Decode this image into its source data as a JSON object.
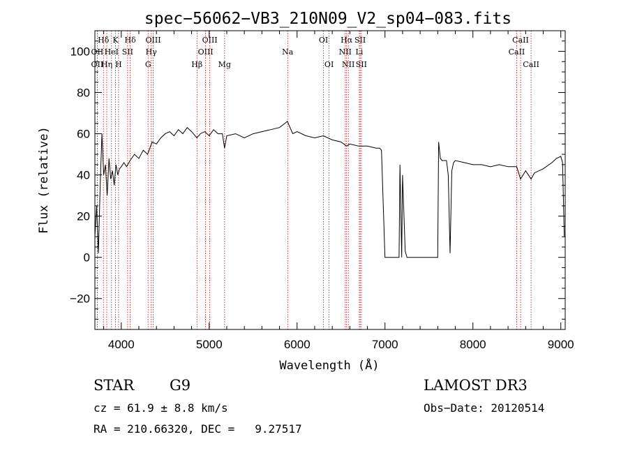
{
  "chart_data": {
    "type": "line",
    "title": "spec−56062−VB3_210N09_V2_sp04−083.fits",
    "xlabel": "Wavelength (Å)",
    "ylabel": "Flux (relative)",
    "xlim": [
      3700,
      9050
    ],
    "ylim": [
      -35,
      110
    ],
    "x_ticks": [
      4000,
      5000,
      6000,
      7000,
      8000,
      9000
    ],
    "y_ticks": [
      -20,
      0,
      20,
      40,
      60,
      80,
      100
    ],
    "series": [
      {
        "x": [
          3700,
          3720,
          3740,
          3760,
          3780,
          3800,
          3820,
          3840,
          3860,
          3880,
          3900,
          3920,
          3940,
          3960,
          3980,
          4000,
          4030,
          4060,
          4100,
          4150,
          4200,
          4250,
          4300,
          4350,
          4400,
          4450,
          4500,
          4550,
          4600,
          4650,
          4700,
          4750,
          4800,
          4860,
          4900,
          4950,
          5000,
          5050,
          5100,
          5150,
          5175,
          5200,
          5300,
          5400,
          5500,
          5600,
          5700,
          5800,
          5890,
          5950,
          6000,
          6100,
          6200,
          6300,
          6400,
          6500,
          6563,
          6600,
          6700,
          6800,
          6900,
          6940,
          6960,
          7000,
          7100,
          7160,
          7170,
          7190,
          7200,
          7230,
          7250,
          7300,
          7400,
          7500,
          7590,
          7600,
          7610,
          7630,
          7650,
          7700,
          7720,
          7740,
          7760,
          7780,
          7800,
          7900,
          8000,
          8100,
          8200,
          8300,
          8400,
          8498,
          8542,
          8600,
          8662,
          8700,
          8800,
          8900,
          8950,
          9000,
          9020,
          9040
        ],
        "y": [
          10,
          25,
          2,
          35,
          60,
          40,
          45,
          30,
          48,
          38,
          42,
          35,
          45,
          40,
          43,
          44,
          46,
          44,
          47,
          50,
          48,
          52,
          50,
          56,
          55,
          58,
          60,
          61,
          59,
          62,
          60,
          63,
          61,
          58,
          60,
          61,
          59,
          62,
          60,
          60,
          53,
          59,
          60,
          58,
          60,
          61,
          62,
          63,
          66,
          60,
          61,
          59,
          58,
          59,
          57,
          56,
          54,
          55,
          54,
          54,
          53,
          53,
          52,
          0,
          0,
          0,
          45,
          0,
          40,
          3,
          0,
          0,
          0,
          0,
          0,
          0,
          56,
          48,
          47,
          47,
          40,
          2,
          42,
          46,
          47,
          46,
          45,
          45,
          44,
          45,
          44,
          44,
          38,
          42,
          38,
          41,
          43,
          46,
          48,
          49,
          46,
          10
        ]
      }
    ],
    "line_markers": [
      {
        "label": "Hδ",
        "wl": 3797,
        "row": 1
      },
      {
        "label": "OII",
        "wl": 3727,
        "row": 2
      },
      {
        "label": "OII",
        "wl": 3727,
        "row": 3
      },
      {
        "label": "K",
        "wl": 3934,
        "row": 1
      },
      {
        "label": "HeI",
        "wl": 3889,
        "row": 2
      },
      {
        "label": "Hη",
        "wl": 3835,
        "row": 3
      },
      {
        "label": "Hδ",
        "wl": 4102,
        "row": 1
      },
      {
        "label": "SII",
        "wl": 4072,
        "row": 2
      },
      {
        "label": "H",
        "wl": 3969,
        "row": 3
      },
      {
        "label": "OIII",
        "wl": 4363,
        "row": 1
      },
      {
        "label": "Hγ",
        "wl": 4341,
        "row": 2
      },
      {
        "label": "G",
        "wl": 4305,
        "row": 3
      },
      {
        "label": "OIII",
        "wl": 5007,
        "row": 1
      },
      {
        "label": "OIII",
        "wl": 4959,
        "row": 2
      },
      {
        "label": "Hβ",
        "wl": 4861,
        "row": 3
      },
      {
        "label": "Mg",
        "wl": 5175,
        "row": 3
      },
      {
        "label": "Na",
        "wl": 5893,
        "row": 2
      },
      {
        "label": "OI",
        "wl": 6300,
        "row": 1
      },
      {
        "label": "OI",
        "wl": 6364,
        "row": 3
      },
      {
        "label": "Hα",
        "wl": 6563,
        "row": 1
      },
      {
        "label": "NII",
        "wl": 6548,
        "row": 2
      },
      {
        "label": "NII",
        "wl": 6583,
        "row": 3
      },
      {
        "label": "SII",
        "wl": 6717,
        "row": 1
      },
      {
        "label": "Li",
        "wl": 6708,
        "row": 2
      },
      {
        "label": "SII",
        "wl": 6731,
        "row": 3
      },
      {
        "label": "CaII",
        "wl": 8542,
        "row": 1
      },
      {
        "label": "CaII",
        "wl": 8498,
        "row": 2
      },
      {
        "label": "CaII",
        "wl": 8662,
        "row": 3
      }
    ]
  },
  "info": {
    "class": "STAR",
    "subclass": "G9",
    "survey": "LAMOST DR3",
    "cz": "cz = 61.9 ± 8.8 km/s",
    "obs_date": "Obs−Date: 20120514",
    "radec": "RA = 210.66320, DEC =   9.27517"
  },
  "colors": {
    "marker_line": "#cc0000",
    "spectrum": "#000000",
    "axes": "#000000"
  }
}
